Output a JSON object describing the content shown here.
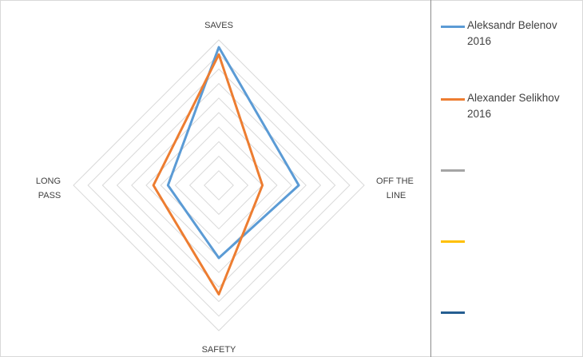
{
  "chart_data": {
    "type": "radar",
    "axes": [
      "SAVES",
      "OFF THE LINE",
      "SAFETY",
      "LONG PASS"
    ],
    "axis_label_lines": [
      [
        "SAVES"
      ],
      [
        "OFF THE",
        "LINE"
      ],
      [
        "SAFETY"
      ],
      [
        "LONG",
        "PASS"
      ]
    ],
    "rlim": [
      0,
      10
    ],
    "grid_rings": 10,
    "series": [
      {
        "name": "Aleksandr Belenov 2016",
        "name_lines": [
          "Aleksandr Belenov",
          "2016"
        ],
        "color": "#5b9bd5",
        "values": [
          9.5,
          5.5,
          5.0,
          3.5
        ]
      },
      {
        "name": "Alexander Selikhov 2016",
        "name_lines": [
          "Alexander Selikhov",
          "2016"
        ],
        "color": "#ed7d31",
        "values": [
          9.0,
          3.0,
          7.5,
          4.5
        ]
      },
      {
        "name": "",
        "name_lines": [
          "",
          ""
        ],
        "color": "#a5a5a5",
        "values": []
      },
      {
        "name": "",
        "name_lines": [
          "",
          ""
        ],
        "color": "#ffc000",
        "values": []
      },
      {
        "name": "",
        "name_lines": [
          "",
          ""
        ],
        "color": "#255e91",
        "values": []
      }
    ]
  }
}
